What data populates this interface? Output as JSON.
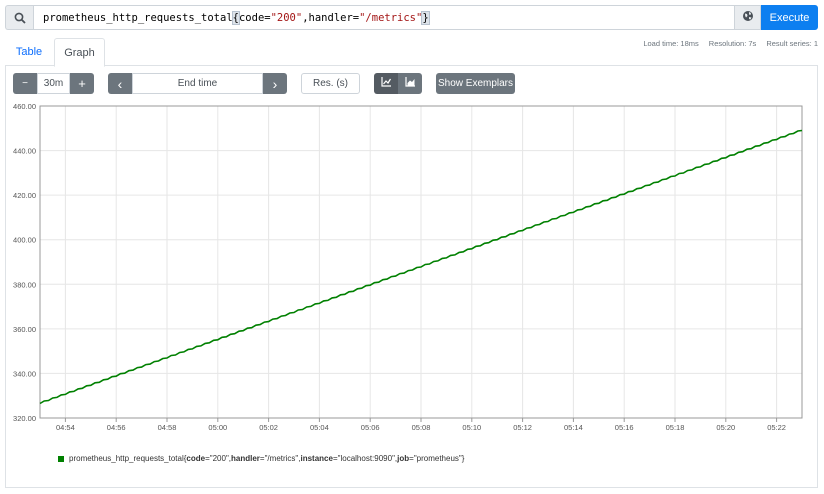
{
  "search": {
    "query_metric": "prometheus_http_requests_total",
    "query_open": "{",
    "query_label1": "code=",
    "query_val1": "\"200\"",
    "query_sep": ",",
    "query_label2": "handler=",
    "query_val2": "\"/metrics\"",
    "query_close": "}",
    "execute_label": "Execute"
  },
  "tabs": {
    "table": "Table",
    "graph": "Graph"
  },
  "stats": {
    "load_time": "Load time: 18ms",
    "resolution": "Resolution: 7s",
    "result_series": "Result series: 1"
  },
  "controls": {
    "minus": "−",
    "range": "30m",
    "plus": "+",
    "prev": "‹",
    "end_time_placeholder": "End time",
    "next": "›",
    "resolution_placeholder": "Res. (s)",
    "show_exemplars": "Show Exemplars"
  },
  "colors": {
    "series": "#008000",
    "execute": "#0d7ff0",
    "accent": "#0d6efd"
  },
  "chart_data": {
    "type": "line",
    "ylim": [
      320,
      460
    ],
    "yticks": [
      "320.00",
      "340.00",
      "360.00",
      "380.00",
      "400.00",
      "420.00",
      "440.00",
      "460.00"
    ],
    "xticks": [
      "04:54",
      "04:56",
      "04:58",
      "05:00",
      "05:02",
      "05:04",
      "05:06",
      "05:08",
      "05:10",
      "05:12",
      "05:14",
      "05:16",
      "05:18",
      "05:20",
      "05:22"
    ],
    "x_start": "04:53",
    "x_end": "05:23",
    "series": [
      {
        "name": "prometheus_http_requests_total",
        "color": "#008000",
        "x": [
          "04:53",
          "05:23"
        ],
        "values": [
          326.5,
          449.0
        ]
      }
    ]
  },
  "legend": {
    "metric": "prometheus_http_requests_total{",
    "k1": "code",
    "v1": "=\"200\", ",
    "k2": "handler",
    "v2": "=\"/metrics\", ",
    "k3": "instance",
    "v3": "=\"localhost:9090\", ",
    "k4": "job",
    "v4": "=\"prometheus\"}"
  }
}
